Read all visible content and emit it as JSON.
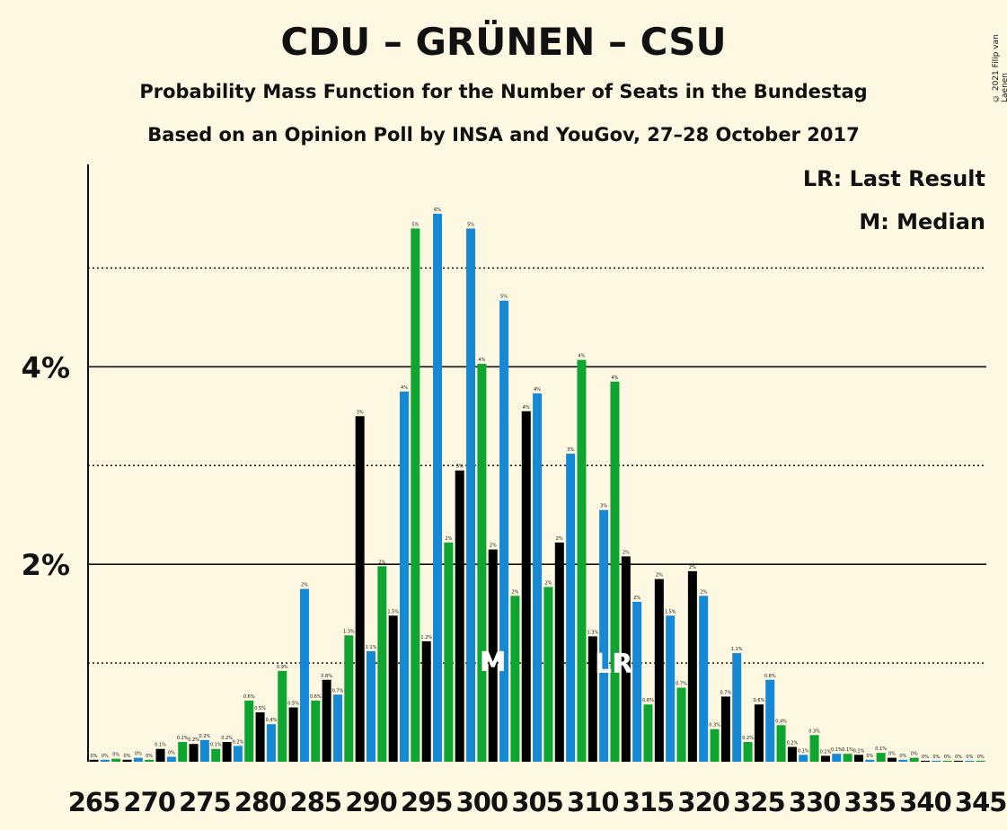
{
  "chart_data": {
    "type": "bar",
    "title": "CDU – GRÜNEN – CSU",
    "subtitle": "Probability Mass Function for the Number of Seats in the Bundestag",
    "subtitle2": "Based on an Opinion Poll by INSA and YouGov, 27–28 October 2017",
    "copyright": "© 2021 Filip van Laenen",
    "legend": {
      "lr": "LR: Last Result",
      "m": "M: Median",
      "placement": "top-right"
    },
    "colors": {
      "black": "#000000",
      "blue": "#1589d6",
      "green": "#0ea531",
      "background": "#fef8e2"
    },
    "x_start": 265,
    "x_end": 345,
    "x_tick_labels": [
      "265",
      "270",
      "275",
      "280",
      "285",
      "290",
      "295",
      "300",
      "305",
      "310",
      "315",
      "320",
      "325",
      "330",
      "335",
      "340",
      "345"
    ],
    "values": [
      0.02,
      0.02,
      0.03,
      0.02,
      0.04,
      0.02,
      0.13,
      0.05,
      0.2,
      0.18,
      0.22,
      0.13,
      0.2,
      0.16,
      0.62,
      0.5,
      0.38,
      0.92,
      0.55,
      1.75,
      0.62,
      0.83,
      0.68,
      1.28,
      3.5,
      1.12,
      1.98,
      1.48,
      3.75,
      5.4,
      1.22,
      5.55,
      2.22,
      2.95,
      5.4,
      4.03,
      2.15,
      4.67,
      1.68,
      3.55,
      3.73,
      1.77,
      2.22,
      3.12,
      4.07,
      1.27,
      2.55,
      3.85,
      2.08,
      1.62,
      0.58,
      1.85,
      1.48,
      0.75,
      1.93,
      1.68,
      0.33,
      0.66,
      1.1,
      0.2,
      0.58,
      0.83,
      0.37,
      0.15,
      0.07,
      0.27,
      0.06,
      0.08,
      0.08,
      0.07,
      0.02,
      0.09,
      0.04,
      0.02,
      0.04,
      0.01,
      0.01,
      0.01,
      0.01,
      0.01,
      0.01
    ],
    "data_labels": [
      "0%",
      "0%",
      "0%",
      "0%",
      "0%",
      "0%",
      "0.1%",
      "0%",
      "0.2%",
      "0.2%",
      "0.2%",
      "0.1%",
      "0.2%",
      "0.2%",
      "0.6%",
      "0.5%",
      "0.4%",
      "0.9%",
      "0.5%",
      "2%",
      "0.6%",
      "0.8%",
      "0.7%",
      "1.3%",
      "3%",
      "1.1%",
      "2%",
      "1.5%",
      "4%",
      "5%",
      "1.2%",
      "6%",
      "2%",
      "3%",
      "5%",
      "4%",
      "2%",
      "5%",
      "2%",
      "4%",
      "4%",
      "2%",
      "2%",
      "3%",
      "4%",
      "1.3%",
      "3%",
      "4%",
      "2%",
      "2%",
      "0.6%",
      "2%",
      "1.5%",
      "0.7%",
      "2%",
      "2%",
      "0.3%",
      "0.7%",
      "1.1%",
      "0.2%",
      "0.6%",
      "0.8%",
      "0.4%",
      "0.2%",
      "0.1%",
      "0.3%",
      "0.1%",
      "0.1%",
      "0.1%",
      "0.1%",
      "0%",
      "0.1%",
      "0%",
      "0%",
      "0%",
      "0%",
      "0%",
      "0%",
      "0%",
      "0%",
      "0%"
    ],
    "y_ticks": [
      {
        "value": 2,
        "label": "2%"
      },
      {
        "value": 4,
        "label": "4%"
      }
    ],
    "y_grid_dotted": [
      1,
      3,
      5
    ],
    "ylim": [
      0,
      6.05
    ],
    "median_seat": 301,
    "median_label": "M",
    "last_result_seat": 311,
    "last_result_label": "LR"
  }
}
